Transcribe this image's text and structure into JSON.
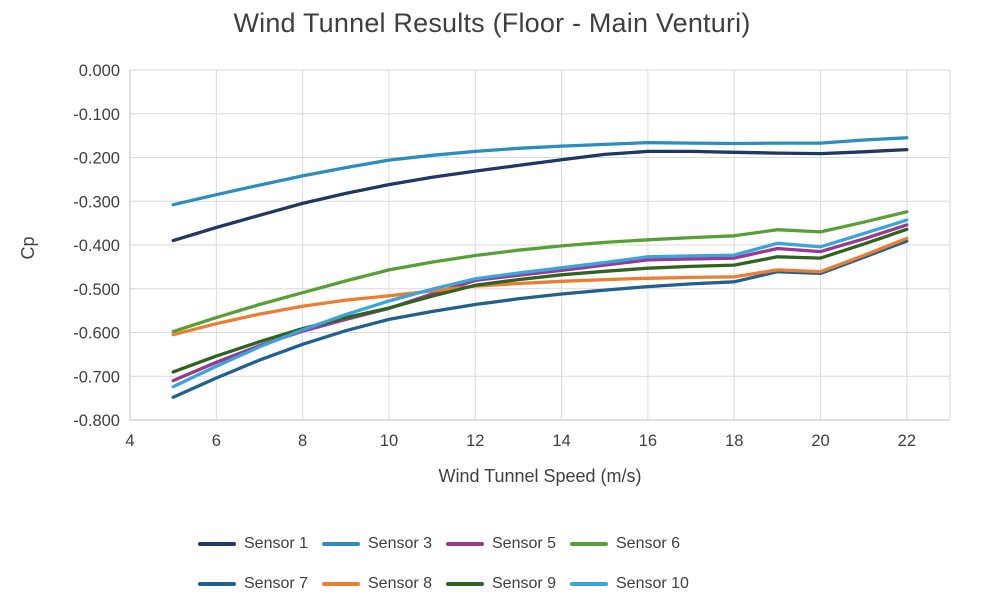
{
  "title": "Wind Tunnel Results (Floor - Main Venturi)",
  "chart_data": {
    "type": "line",
    "title": "Wind Tunnel Results (Floor - Main Venturi)",
    "xlabel": "Wind Tunnel Speed (m/s)",
    "ylabel": "Cp",
    "xlim": [
      4,
      23
    ],
    "ylim": [
      -0.8,
      0
    ],
    "grid": true,
    "legend_position": "bottom",
    "x_ticks": [
      4,
      6,
      8,
      10,
      12,
      14,
      16,
      18,
      20,
      22
    ],
    "y_ticks": [
      "0.000",
      "-0.100",
      "-0.200",
      "-0.300",
      "-0.400",
      "-0.500",
      "-0.600",
      "-0.700",
      "-0.800"
    ],
    "x": [
      5,
      6,
      7,
      8,
      9,
      10,
      11,
      12,
      13,
      14,
      15,
      16,
      17,
      18,
      19,
      20,
      21,
      22
    ],
    "series": [
      {
        "name": "Sensor 1",
        "color": "#1F3864",
        "values": [
          -0.39,
          -0.36,
          -0.332,
          -0.305,
          -0.282,
          -0.262,
          -0.245,
          -0.231,
          -0.218,
          -0.205,
          -0.193,
          -0.186,
          -0.186,
          -0.188,
          -0.19,
          -0.191,
          -0.187,
          -0.182
        ]
      },
      {
        "name": "Sensor 3",
        "color": "#2C8EBE",
        "values": [
          -0.308,
          -0.285,
          -0.263,
          -0.242,
          -0.223,
          -0.206,
          -0.195,
          -0.186,
          -0.179,
          -0.174,
          -0.17,
          -0.166,
          -0.167,
          -0.168,
          -0.167,
          -0.167,
          -0.16,
          -0.155
        ]
      },
      {
        "name": "Sensor 5",
        "color": "#99398F",
        "values": [
          -0.71,
          -0.668,
          -0.63,
          -0.597,
          -0.57,
          -0.545,
          -0.512,
          -0.481,
          -0.469,
          -0.458,
          -0.446,
          -0.434,
          -0.432,
          -0.43,
          -0.408,
          -0.415,
          -0.386,
          -0.354
        ]
      },
      {
        "name": "Sensor 6",
        "color": "#56A036",
        "values": [
          -0.598,
          -0.566,
          -0.536,
          -0.509,
          -0.482,
          -0.457,
          -0.439,
          -0.424,
          -0.412,
          -0.402,
          -0.394,
          -0.388,
          -0.383,
          -0.379,
          -0.365,
          -0.37,
          -0.348,
          -0.324
        ]
      },
      {
        "name": "Sensor 7",
        "color": "#20618F",
        "values": [
          -0.748,
          -0.704,
          -0.663,
          -0.627,
          -0.596,
          -0.57,
          -0.552,
          -0.536,
          -0.523,
          -0.512,
          -0.503,
          -0.495,
          -0.489,
          -0.484,
          -0.461,
          -0.465,
          -0.428,
          -0.391
        ]
      },
      {
        "name": "Sensor 8",
        "color": "#ED7D31",
        "values": [
          -0.605,
          -0.58,
          -0.558,
          -0.54,
          -0.526,
          -0.516,
          -0.505,
          -0.494,
          -0.488,
          -0.483,
          -0.479,
          -0.476,
          -0.474,
          -0.473,
          -0.457,
          -0.461,
          -0.424,
          -0.385
        ]
      },
      {
        "name": "Sensor 9",
        "color": "#2F6420",
        "values": [
          -0.69,
          -0.654,
          -0.621,
          -0.591,
          -0.566,
          -0.544,
          -0.517,
          -0.492,
          -0.479,
          -0.468,
          -0.46,
          -0.453,
          -0.449,
          -0.446,
          -0.427,
          -0.43,
          -0.398,
          -0.364
        ]
      },
      {
        "name": "Sensor 10",
        "color": "#3AA5DC",
        "values": [
          -0.724,
          -0.677,
          -0.633,
          -0.594,
          -0.559,
          -0.528,
          -0.501,
          -0.477,
          -0.464,
          -0.452,
          -0.44,
          -0.427,
          -0.425,
          -0.423,
          -0.396,
          -0.404,
          -0.374,
          -0.343
        ]
      }
    ],
    "colors": {
      "grid": "#D9D9D9",
      "axis": "#BFBFBF",
      "text": "#404040"
    }
  }
}
